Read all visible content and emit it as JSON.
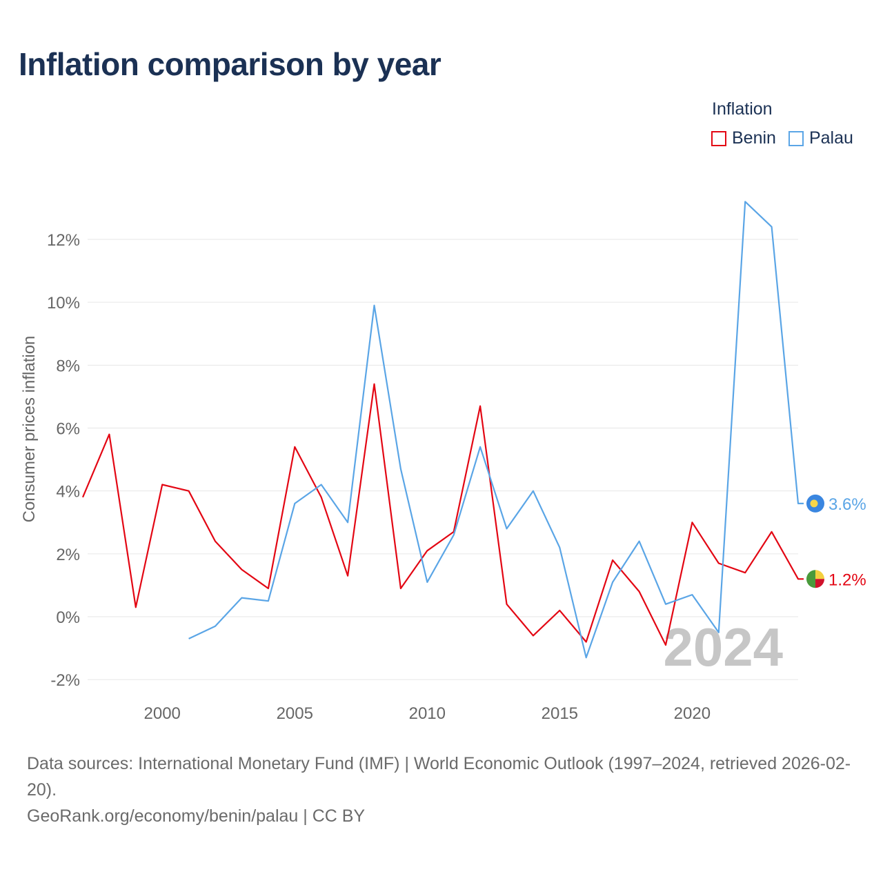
{
  "title": "Inflation comparison by year",
  "legend": {
    "title": "Inflation",
    "items": [
      {
        "label": "Benin",
        "color": "#e30613"
      },
      {
        "label": "Palau",
        "color": "#5aa5e6"
      }
    ]
  },
  "chart_data": {
    "type": "line",
    "title": "Inflation comparison by year",
    "xlabel": "",
    "ylabel": "Consumer prices inflation",
    "xlim": [
      1997,
      2024
    ],
    "ylim": [
      -2.5,
      13.5
    ],
    "x_ticks": [
      2000,
      2005,
      2010,
      2015,
      2020
    ],
    "y_ticks": [
      -2,
      0,
      2,
      4,
      6,
      8,
      10,
      12
    ],
    "y_tick_labels": [
      "-2%",
      "0%",
      "2%",
      "4%",
      "6%",
      "8%",
      "10%",
      "12%"
    ],
    "grid": true,
    "watermark_year": "2024",
    "series": [
      {
        "name": "Benin",
        "color": "#e30613",
        "x": [
          1997,
          1998,
          1999,
          2000,
          2001,
          2002,
          2003,
          2004,
          2005,
          2006,
          2007,
          2008,
          2009,
          2010,
          2011,
          2012,
          2013,
          2014,
          2015,
          2016,
          2017,
          2018,
          2019,
          2020,
          2021,
          2022,
          2023,
          2024
        ],
        "values": [
          3.8,
          5.8,
          0.3,
          4.2,
          4.0,
          2.4,
          1.5,
          0.9,
          5.4,
          3.8,
          1.3,
          7.4,
          0.9,
          2.1,
          2.7,
          6.7,
          0.4,
          -0.6,
          0.2,
          -0.8,
          1.8,
          0.8,
          -0.9,
          3.0,
          1.7,
          1.4,
          2.7,
          1.2
        ],
        "end_label": "1.2%"
      },
      {
        "name": "Palau",
        "color": "#5aa5e6",
        "x": [
          2001,
          2002,
          2003,
          2004,
          2005,
          2006,
          2007,
          2008,
          2009,
          2010,
          2011,
          2012,
          2013,
          2014,
          2015,
          2016,
          2017,
          2018,
          2019,
          2020,
          2021,
          2022,
          2023,
          2024
        ],
        "values": [
          -0.7,
          -0.3,
          0.6,
          0.5,
          3.6,
          4.2,
          3.0,
          9.9,
          4.7,
          1.1,
          2.6,
          5.4,
          2.8,
          4.0,
          2.2,
          -1.3,
          1.1,
          2.4,
          0.4,
          0.7,
          -0.5,
          13.2,
          12.4,
          3.6
        ],
        "end_label": "3.6%"
      }
    ]
  },
  "footer": {
    "sources": "Data sources: International Monetary Fund (IMF) | World Economic Outlook (1997–2024, retrieved 2026-02-20).",
    "credit": "GeoRank.org/economy/benin/palau | CC BY"
  }
}
